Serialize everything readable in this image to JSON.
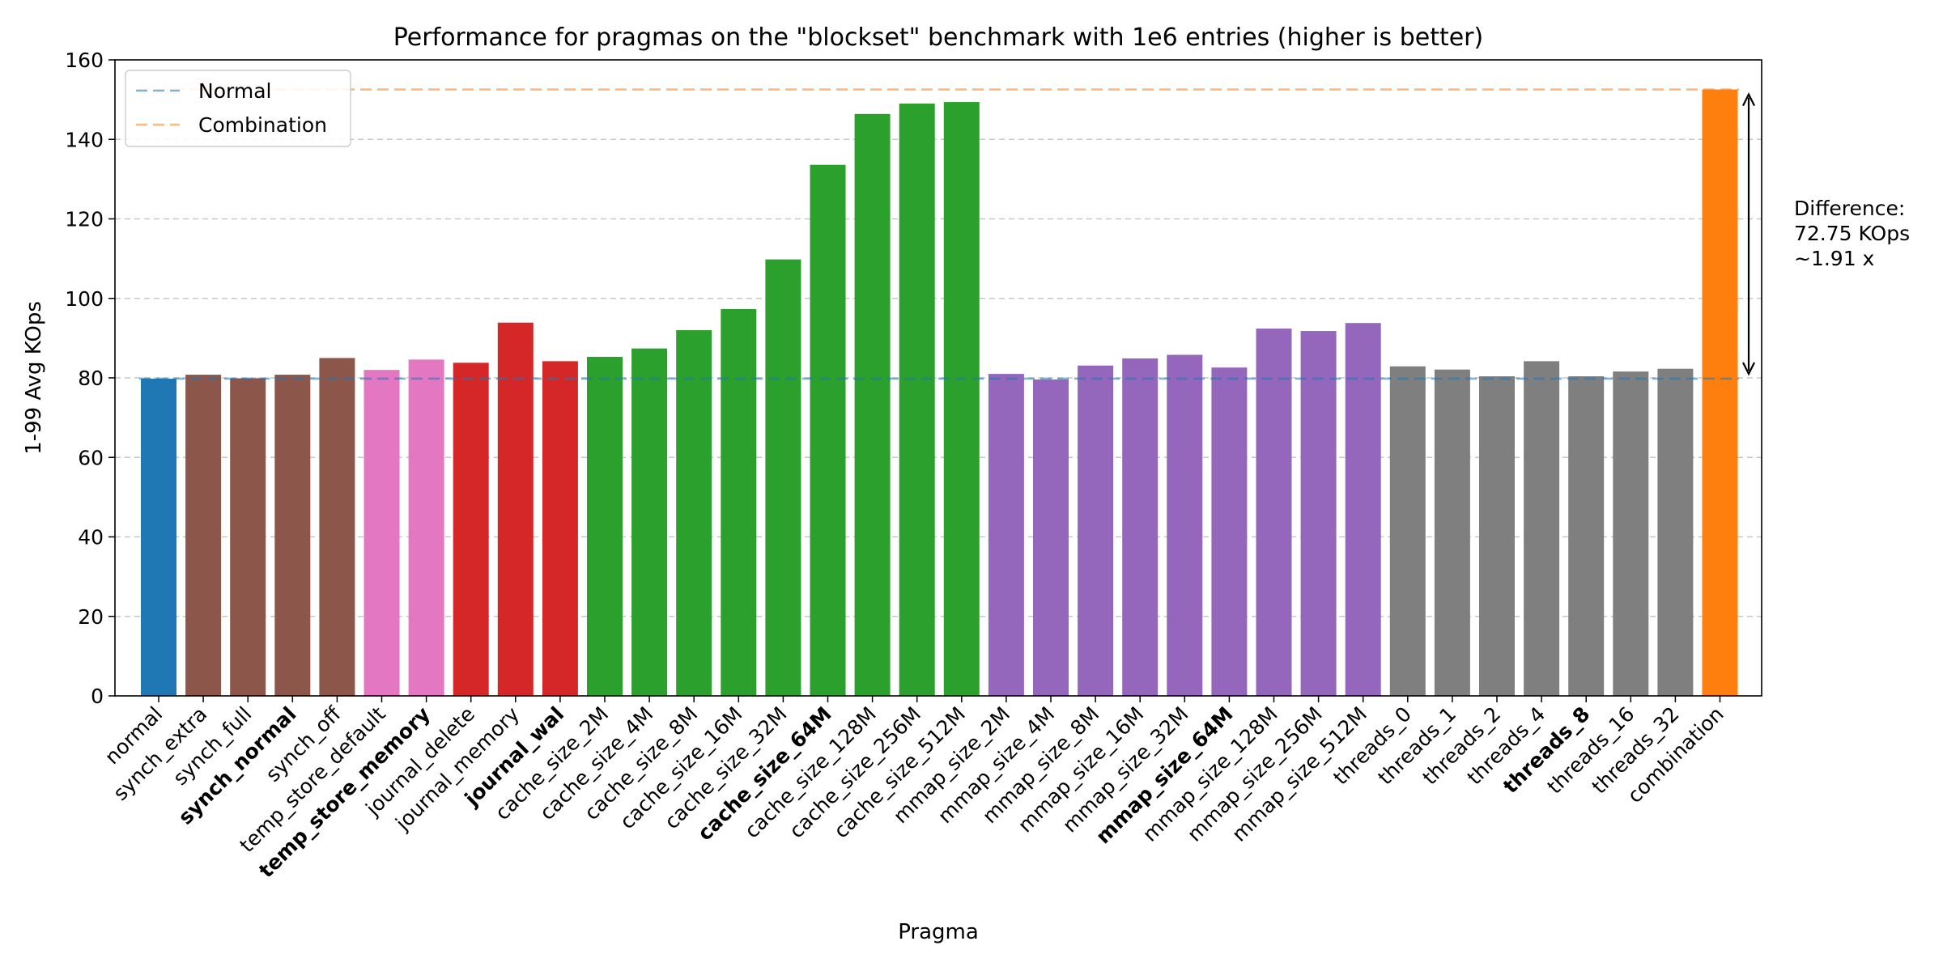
{
  "chart_data": {
    "type": "bar",
    "title": "Performance for pragmas on the \"blockset\" benchmark with 1e6 entries (higher is better)",
    "xlabel": "Pragma",
    "ylabel": "1-99 Avg KOps",
    "ylim": [
      0,
      160
    ],
    "yticks": [
      "0",
      "20",
      "40",
      "60",
      "80",
      "100",
      "120",
      "140",
      "160"
    ],
    "grid": "horizontal dashed",
    "legend_position": "top-left",
    "categories": [
      "normal",
      "synch_extra",
      "synch_full",
      "synch_normal",
      "synch_off",
      "temp_store_default",
      "temp_store_memory",
      "journal_delete",
      "journal_memory",
      "journal_wal",
      "cache_size_2M",
      "cache_size_4M",
      "cache_size_8M",
      "cache_size_16M",
      "cache_size_32M",
      "cache_size_64M",
      "cache_size_128M",
      "cache_size_256M",
      "cache_size_512M",
      "mmap_size_2M",
      "mmap_size_4M",
      "mmap_size_8M",
      "mmap_size_16M",
      "mmap_size_32M",
      "mmap_size_64M",
      "mmap_size_128M",
      "mmap_size_256M",
      "mmap_size_512M",
      "threads_0",
      "threads_1",
      "threads_2",
      "threads_4",
      "threads_8",
      "threads_16",
      "threads_32",
      "combination"
    ],
    "values": [
      79.8,
      80.8,
      79.9,
      80.8,
      85.0,
      82.0,
      84.6,
      83.8,
      93.9,
      84.2,
      85.3,
      87.4,
      92.0,
      97.3,
      109.8,
      133.6,
      146.4,
      149.0,
      149.4,
      81.0,
      79.6,
      83.1,
      84.9,
      85.8,
      82.6,
      92.4,
      91.8,
      93.8,
      82.9,
      82.1,
      80.4,
      84.2,
      80.4,
      81.6,
      82.3,
      152.55
    ],
    "bold_categories": [
      "synch_normal",
      "temp_store_memory",
      "journal_wal",
      "cache_size_64M",
      "mmap_size_64M",
      "threads_8"
    ],
    "colors": [
      "#1f77b4",
      "#8c564b",
      "#8c564b",
      "#8c564b",
      "#8c564b",
      "#e377c2",
      "#e377c2",
      "#d62728",
      "#d62728",
      "#d62728",
      "#2ca02c",
      "#2ca02c",
      "#2ca02c",
      "#2ca02c",
      "#2ca02c",
      "#2ca02c",
      "#2ca02c",
      "#2ca02c",
      "#2ca02c",
      "#9467bd",
      "#9467bd",
      "#9467bd",
      "#9467bd",
      "#9467bd",
      "#9467bd",
      "#9467bd",
      "#9467bd",
      "#9467bd",
      "#7f7f7f",
      "#7f7f7f",
      "#7f7f7f",
      "#7f7f7f",
      "#7f7f7f",
      "#7f7f7f",
      "#7f7f7f",
      "#ff7f0e"
    ],
    "reference_lines": [
      {
        "name": "Normal",
        "value": 79.8,
        "color": "#1f77b4"
      },
      {
        "name": "Combination",
        "value": 152.55,
        "color": "#ff7f0e"
      }
    ],
    "annotation": {
      "lines": [
        "Difference:",
        "72.75 KOps",
        "~1.91 x"
      ],
      "from": 79.8,
      "to": 152.55
    }
  }
}
